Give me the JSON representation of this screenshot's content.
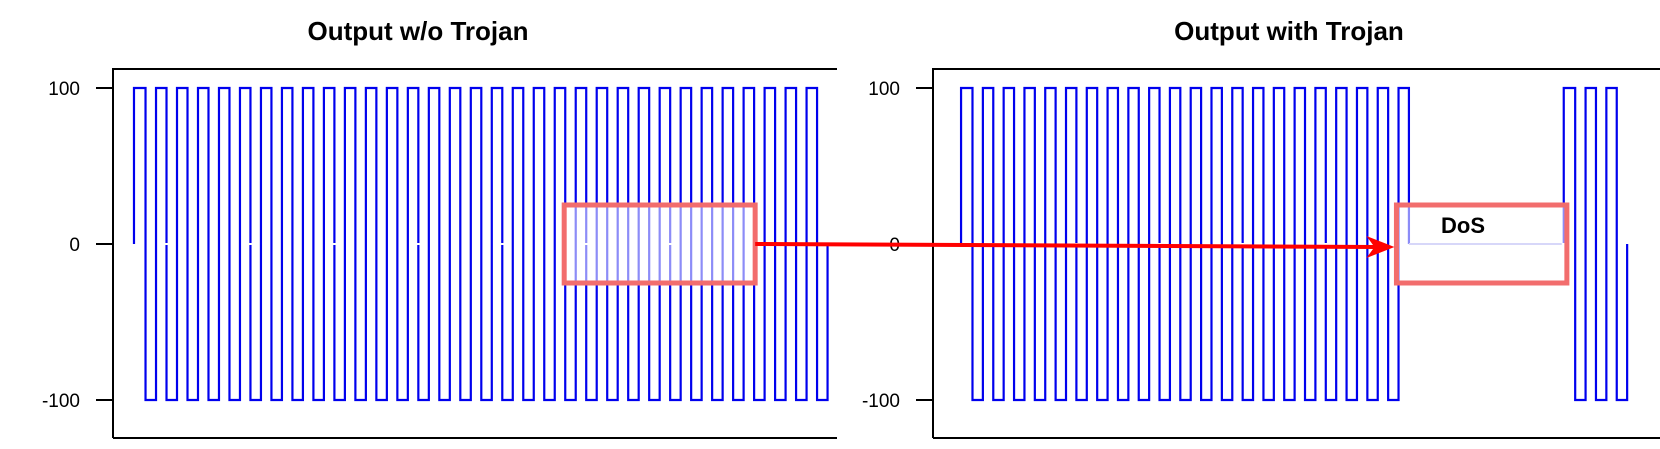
{
  "chart_data": [
    {
      "type": "line",
      "title": "Output w/o Trojan",
      "xlabel": "",
      "ylabel": "",
      "ylim": [
        -100,
        100
      ],
      "yticks": [
        100,
        0,
        -100
      ],
      "xlim": [
        0,
        34.5
      ],
      "grid": false,
      "series": [
        {
          "color": "#0000ee",
          "waveform": "square",
          "amplitude": 100,
          "start_value": 0,
          "transitions_x": [
            1,
            1.55,
            2.05,
            2.55,
            3.05,
            3.55,
            4.05,
            4.55,
            5.05,
            5.55,
            6.05,
            6.55,
            7.05,
            7.55,
            8.05,
            8.55,
            9.05,
            9.55,
            10.05,
            10.55,
            11.05,
            11.55,
            12.05,
            12.55,
            13.05,
            13.55,
            14.05,
            14.55,
            15.05,
            15.55,
            16.05,
            16.55,
            17.05,
            17.55,
            18.05,
            18.55,
            19.05,
            19.55,
            20.05,
            20.55,
            21.05,
            21.55,
            22.05,
            22.55,
            23.05,
            23.55,
            24.05,
            24.55,
            25.05,
            25.55,
            26.05,
            26.55,
            27.05,
            27.55,
            28.05,
            28.55,
            29.05,
            29.55,
            30.05,
            30.55,
            31.05,
            31.55,
            32.05,
            32.55,
            33.05,
            33.55
          ],
          "x_end": 34.05,
          "levels_after_transition": [
            100,
            -100
          ]
        }
      ],
      "highlight_box": {
        "x": [
          21.5,
          30.6
        ],
        "y": [
          -25,
          25
        ],
        "color": "#f26d6d"
      }
    },
    {
      "type": "line",
      "title": "Output with Trojan",
      "xlabel": "",
      "ylabel": "",
      "ylim": [
        -100,
        100
      ],
      "yticks": [
        100,
        0,
        -100
      ],
      "xlim": [
        0,
        34.5
      ],
      "grid": false,
      "series": [
        {
          "color": "#0000ee",
          "waveform": "square",
          "amplitude": 100,
          "start_value": 0,
          "transitions_x": [
            1.35,
            1.9,
            2.4,
            2.9,
            3.4,
            3.9,
            4.4,
            4.9,
            5.4,
            5.9,
            6.4,
            6.9,
            7.4,
            7.9,
            8.4,
            8.9,
            9.4,
            9.9,
            10.4,
            10.9,
            11.4,
            11.9,
            12.4,
            12.9,
            13.4,
            13.9,
            14.4,
            14.9,
            15.4,
            15.9,
            16.4,
            16.9,
            17.4,
            17.9,
            18.4,
            18.9,
            19.4,
            19.9,
            20.4,
            20.9,
            21.4,
            21.9,
            22.4
          ],
          "dos_segment": {
            "x_start": 22.9,
            "x_end": 30.35,
            "value": 0
          },
          "transitions_x_after": [
            30.35,
            30.9,
            31.4,
            31.9,
            32.4,
            32.9
          ],
          "x_end": 33.4,
          "levels_after_transition": [
            100,
            -100
          ]
        }
      ],
      "highlight_box": {
        "x": [
          22.3,
          30.5
        ],
        "y": [
          -25,
          25
        ],
        "color": "#f26d6d"
      },
      "annotations": [
        {
          "text": "DoS"
        }
      ]
    }
  ],
  "arrow": {
    "color": "#ff0000",
    "from": "left-panel-box",
    "to": "right-panel-box"
  }
}
